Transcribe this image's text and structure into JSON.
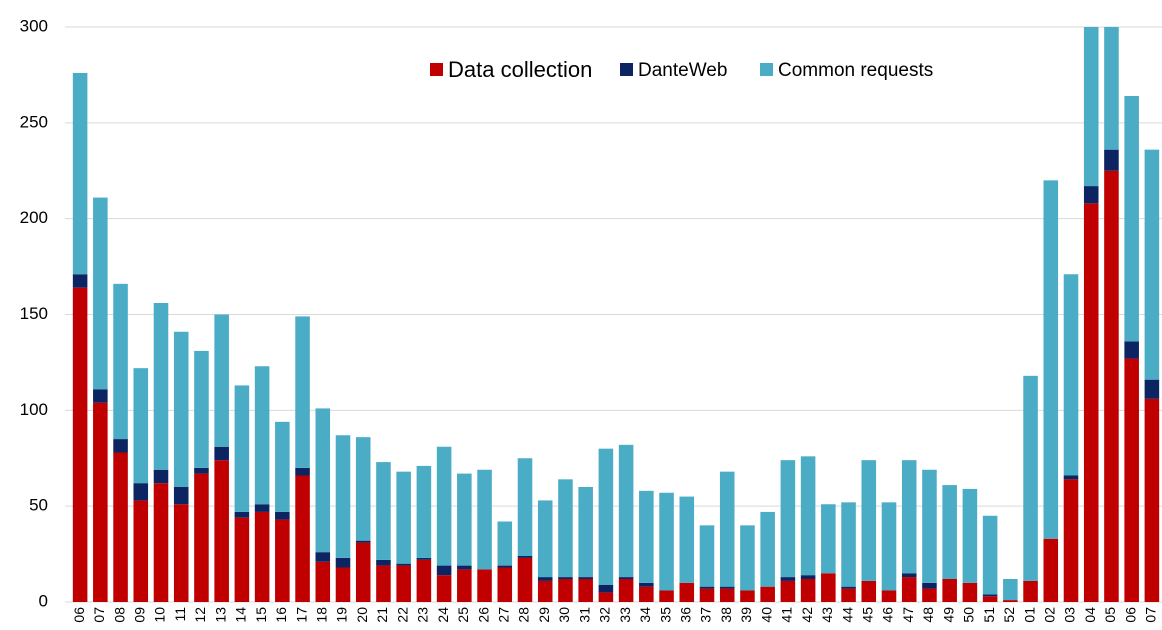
{
  "chart_data": {
    "type": "stacked_bar",
    "categories": [
      "06",
      "07",
      "08",
      "09",
      "10",
      "11",
      "12",
      "13",
      "14",
      "15",
      "16",
      "17",
      "18",
      "19",
      "20",
      "21",
      "22",
      "23",
      "24",
      "25",
      "26",
      "27",
      "28",
      "29",
      "30",
      "31",
      "32",
      "33",
      "34",
      "35",
      "36",
      "37",
      "38",
      "39",
      "40",
      "41",
      "42",
      "43",
      "44",
      "45",
      "46",
      "47",
      "48",
      "49",
      "50",
      "51",
      "52",
      "01",
      "02",
      "03",
      "04",
      "05",
      "06",
      "07"
    ],
    "series": [
      {
        "name": "Data collection",
        "color": "#c00000",
        "values": [
          164,
          104,
          78,
          53,
          62,
          51,
          67,
          74,
          44,
          47,
          43,
          66,
          21,
          18,
          31,
          19,
          19,
          22,
          14,
          17,
          17,
          18,
          23,
          11,
          12,
          12,
          5,
          12,
          8,
          6,
          10,
          7,
          7,
          6,
          8,
          11,
          12,
          15,
          7,
          11,
          6,
          13,
          7,
          12,
          10,
          3,
          1,
          11,
          33,
          64,
          208,
          225,
          127,
          106
        ]
      },
      {
        "name": "DanteWeb",
        "color": "#0c2461",
        "values": [
          7,
          7,
          7,
          9,
          7,
          9,
          3,
          7,
          3,
          4,
          4,
          4,
          5,
          5,
          1,
          3,
          1,
          1,
          5,
          2,
          0,
          1,
          1,
          2,
          1,
          1,
          4,
          1,
          2,
          0,
          0,
          1,
          1,
          0,
          0,
          2,
          2,
          0,
          1,
          0,
          0,
          2,
          3,
          0,
          0,
          1,
          0,
          0,
          0,
          2,
          9,
          11,
          9,
          10
        ]
      },
      {
        "name": "Common requests",
        "color": "#4bacc6",
        "values": [
          105,
          100,
          81,
          60,
          87,
          81,
          61,
          69,
          66,
          72,
          47,
          79,
          75,
          64,
          54,
          51,
          48,
          48,
          62,
          48,
          52,
          23,
          51,
          40,
          51,
          47,
          71,
          69,
          48,
          51,
          45,
          32,
          60,
          34,
          39,
          61,
          62,
          36,
          44,
          63,
          46,
          59,
          59,
          49,
          49,
          41,
          11,
          107,
          187,
          105,
          83,
          64,
          128,
          120
        ]
      }
    ],
    "ylim": [
      0,
      300
    ],
    "yticks": [
      0,
      50,
      100,
      150,
      200,
      250,
      300
    ],
    "grid": true,
    "legend": "upper center"
  }
}
